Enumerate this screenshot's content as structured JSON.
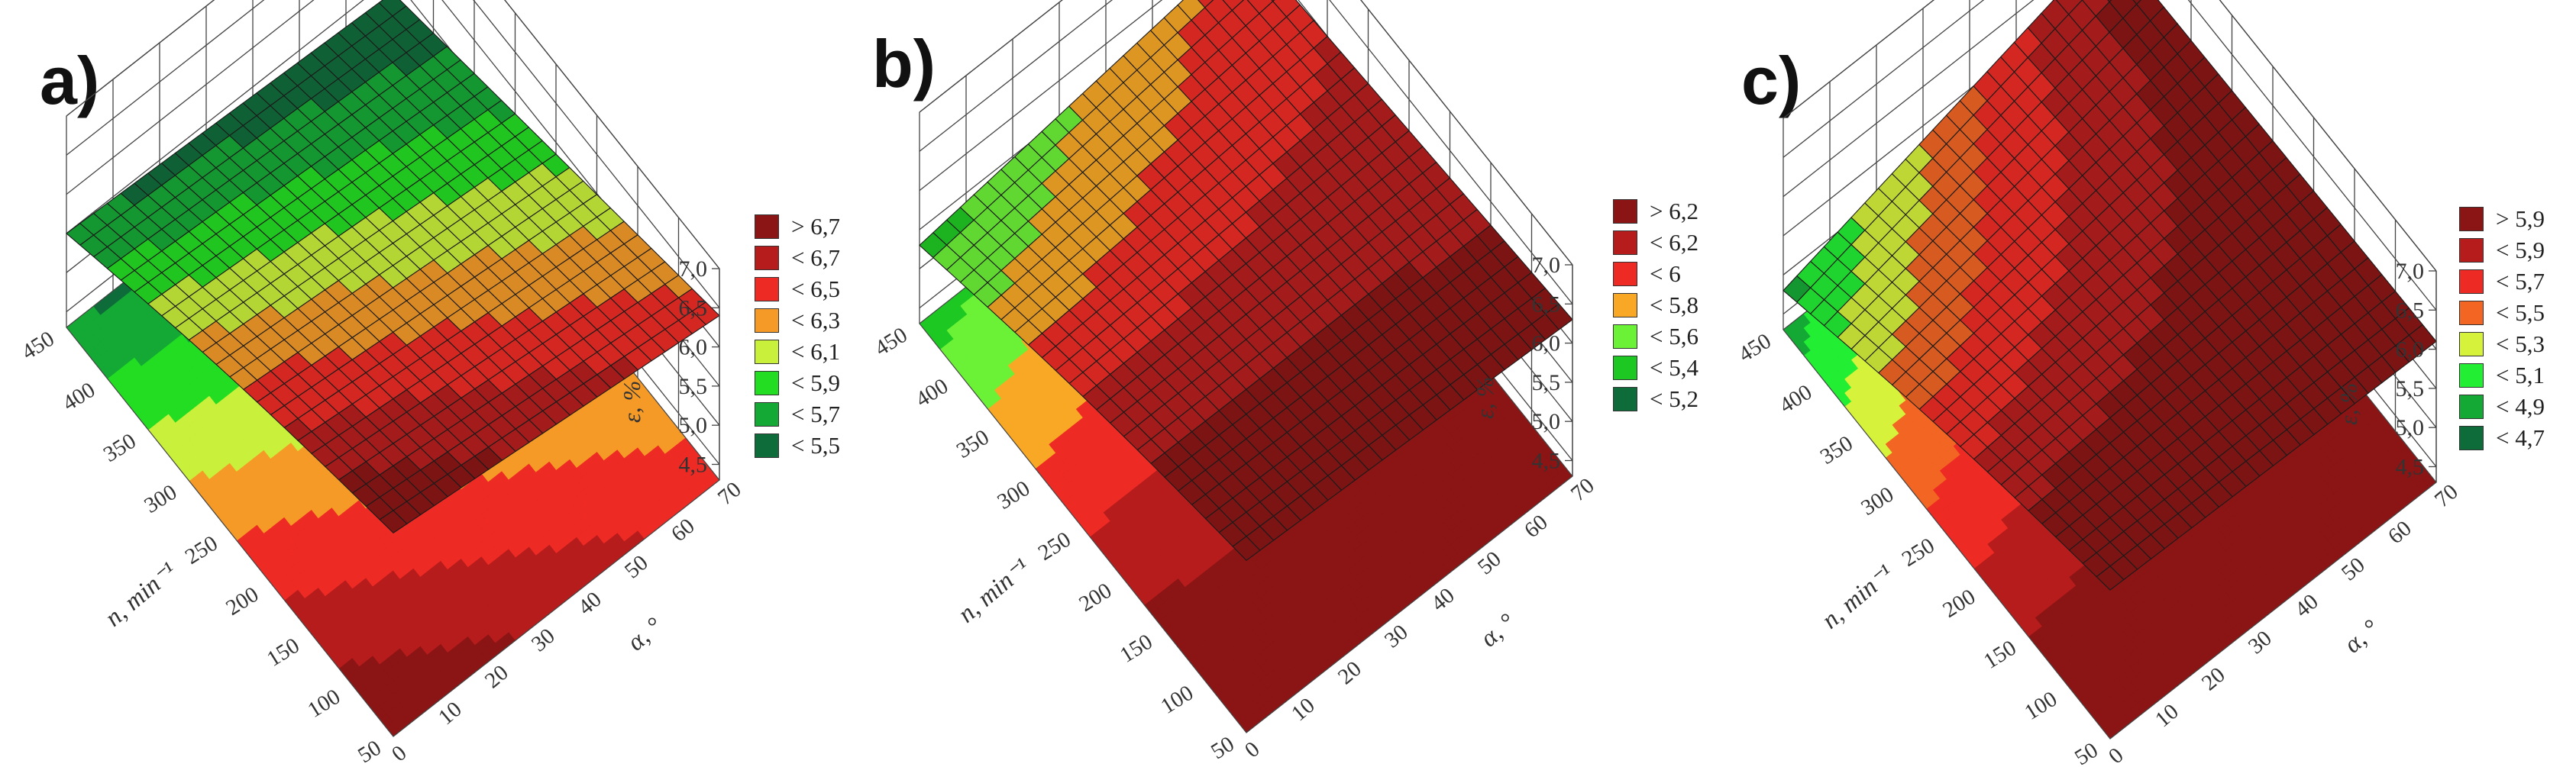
{
  "chart_data": [
    {
      "type": "surface3d",
      "panel_label": "a)",
      "zlabel": "ε, %",
      "xlabel": "n, min⁻¹",
      "ylabel": "α, °",
      "x_ticks": [
        "50",
        "100",
        "150",
        "200",
        "250",
        "300",
        "350",
        "400",
        "450"
      ],
      "y_ticks": [
        "0",
        "10",
        "20",
        "30",
        "40",
        "50",
        "60",
        "70"
      ],
      "z_ticks": [
        "4,5",
        "5,0",
        "5,5",
        "6,0",
        "6,5",
        "7,0"
      ],
      "xlim": [
        50,
        450
      ],
      "ylim": [
        0,
        70
      ],
      "zlim": [
        4.3,
        7.0
      ],
      "corner_values": {
        "n50_a0": 6.9,
        "n450_a0": 5.5,
        "n50_a70": 6.4,
        "n450_a70": 5.3
      },
      "legend": [
        {
          "label": "> 6,7",
          "color": "#8b1414"
        },
        {
          "label": "< 6,7",
          "color": "#b71c1c"
        },
        {
          "label": "< 6,5",
          "color": "#ee2a24"
        },
        {
          "label": "< 6,3",
          "color": "#f59a26"
        },
        {
          "label": "< 6,1",
          "color": "#c9f03a"
        },
        {
          "label": "< 5,9",
          "color": "#22dd22"
        },
        {
          "label": "< 5,7",
          "color": "#14a834"
        },
        {
          "label": "< 5,5",
          "color": "#0e6b3a"
        }
      ],
      "thresholds": [
        5.5,
        5.7,
        5.9,
        6.1,
        6.3,
        6.5,
        6.7
      ]
    },
    {
      "type": "surface3d",
      "panel_label": "b)",
      "zlabel": "ε, %",
      "xlabel": "n, min⁻¹",
      "ylabel": "α, °",
      "x_ticks": [
        "50",
        "100",
        "150",
        "200",
        "250",
        "300",
        "350",
        "400",
        "450"
      ],
      "y_ticks": [
        "0",
        "10",
        "20",
        "30",
        "40",
        "50",
        "60",
        "70"
      ],
      "z_ticks": [
        "4,5",
        "5,0",
        "5,5",
        "6,0",
        "6,5",
        "7,0"
      ],
      "xlim": [
        50,
        450
      ],
      "ylim": [
        0,
        70
      ],
      "zlim": [
        4.3,
        7.0
      ],
      "corner_values": {
        "n50_a0": 6.5,
        "n450_a0": 5.3,
        "n50_a70": 6.3,
        "n450_a70": 5.9
      },
      "legend": [
        {
          "label": "> 6,2",
          "color": "#8b1414"
        },
        {
          "label": "< 6,2",
          "color": "#b71c1c"
        },
        {
          "label": "< 6",
          "color": "#ee2a24"
        },
        {
          "label": "< 5,8",
          "color": "#f9a825"
        },
        {
          "label": "< 5,6",
          "color": "#6bf236"
        },
        {
          "label": "< 5,4",
          "color": "#1ec822"
        },
        {
          "label": "< 5,2",
          "color": "#0e6b3a"
        }
      ],
      "thresholds": [
        5.2,
        5.4,
        5.6,
        5.8,
        6.0,
        6.2
      ]
    },
    {
      "type": "surface3d",
      "panel_label": "c)",
      "zlabel": "ε, %",
      "xlabel": "n, min⁻¹",
      "ylabel": "α, °",
      "x_ticks": [
        "50",
        "100",
        "150",
        "200",
        "250",
        "300",
        "350",
        "400",
        "450"
      ],
      "y_ticks": [
        "0",
        "10",
        "20",
        "30",
        "40",
        "50",
        "60",
        "70"
      ],
      "z_ticks": [
        "4,5",
        "5,0",
        "5,5",
        "6,0",
        "6,5",
        "7,0"
      ],
      "xlim": [
        50,
        450
      ],
      "ylim": [
        0,
        70
      ],
      "zlim": [
        4.3,
        7.0
      ],
      "corner_values": {
        "n50_a0": 6.2,
        "n450_a0": 4.8,
        "n50_a70": 6.1,
        "n450_a70": 6.0
      },
      "legend": [
        {
          "label": "> 5,9",
          "color": "#8b1414"
        },
        {
          "label": "< 5,9",
          "color": "#b71c1c"
        },
        {
          "label": "< 5,7",
          "color": "#ee2a24"
        },
        {
          "label": "< 5,5",
          "color": "#f26522"
        },
        {
          "label": "< 5,3",
          "color": "#d6f23a"
        },
        {
          "label": "< 5,1",
          "color": "#22ee33"
        },
        {
          "label": "< 4,9",
          "color": "#14a834"
        },
        {
          "label": "< 4,7",
          "color": "#0e6b3a"
        }
      ],
      "thresholds": [
        4.7,
        4.9,
        5.1,
        5.3,
        5.5,
        5.7,
        5.9
      ]
    }
  ]
}
